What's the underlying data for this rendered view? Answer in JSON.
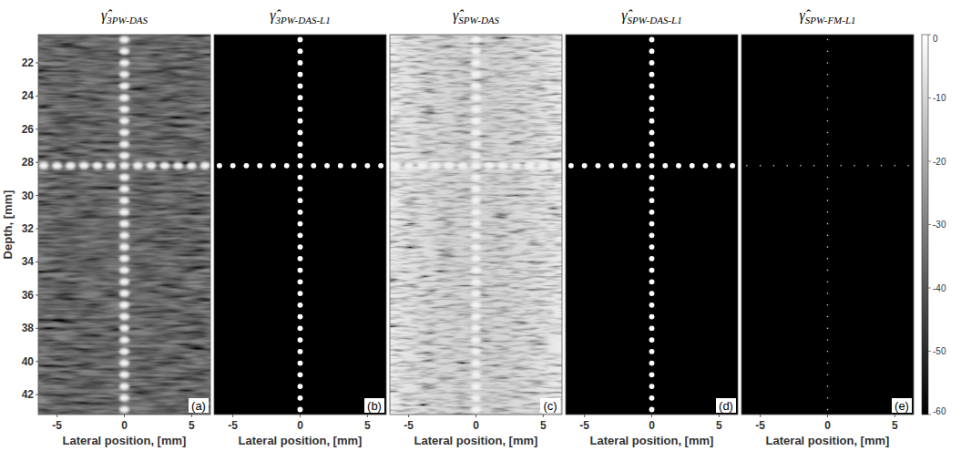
{
  "chart_data": [
    {
      "type": "scatter",
      "title": "γ̂",
      "title_subscript": "3PW-DAS",
      "label": "(a)",
      "xlabel": "Lateral position, [mm]",
      "ylabel": "Depth, [mm]",
      "xlim": [
        -6.4,
        6.4
      ],
      "ylim": [
        20.3,
        43.2
      ],
      "xticks": [
        -5,
        0,
        5
      ],
      "yticks": [
        22,
        24,
        26,
        28,
        30,
        32,
        34,
        36,
        38,
        40,
        42
      ],
      "marker": "blurred",
      "x": [
        0,
        0,
        0,
        0,
        0,
        0,
        0,
        0,
        0,
        0,
        0,
        0,
        0,
        0,
        0,
        0,
        0,
        0,
        0,
        0,
        0,
        0,
        0,
        0,
        0,
        0,
        0,
        0,
        0,
        0,
        0,
        0,
        0,
        -6,
        -5,
        -4,
        -3,
        -2,
        -1,
        1,
        2,
        3,
        4,
        5,
        6
      ],
      "values": [
        20.6,
        21.3,
        22.0,
        22.7,
        23.4,
        24.1,
        24.8,
        25.5,
        26.2,
        26.9,
        27.6,
        28.2,
        28.9,
        29.6,
        30.3,
        31.0,
        31.7,
        32.4,
        33.1,
        33.8,
        34.5,
        35.2,
        35.9,
        36.6,
        37.3,
        38.0,
        38.7,
        39.4,
        40.1,
        40.8,
        41.5,
        42.2,
        42.9,
        28.2,
        28.2,
        28.2,
        28.2,
        28.2,
        28.2,
        28.2,
        28.2,
        28.2,
        28.2,
        28.2,
        28.2
      ]
    },
    {
      "type": "scatter",
      "title": "γ̂",
      "title_subscript": "3PW-DAS-L1",
      "label": "(b)",
      "xlabel": "Lateral position, [mm]",
      "xlim": [
        -6.4,
        6.4
      ],
      "ylim": [
        20.3,
        43.2
      ],
      "xticks": [
        -5,
        0,
        5
      ],
      "tick_labels": "x",
      "marker": "ellipse",
      "x": [
        0,
        0,
        0,
        0,
        0,
        0,
        0,
        0,
        0,
        0,
        0,
        0,
        0,
        0,
        0,
        0,
        0,
        0,
        0,
        0,
        0,
        0,
        0,
        0,
        0,
        0,
        0,
        0,
        0,
        0,
        0,
        0,
        0,
        -6,
        -5,
        -4,
        -3,
        -2,
        -1,
        1,
        2,
        3,
        4,
        5,
        6
      ],
      "values": [
        20.6,
        21.3,
        22.0,
        22.7,
        23.4,
        24.1,
        24.8,
        25.5,
        26.2,
        26.9,
        27.6,
        28.2,
        28.9,
        29.6,
        30.3,
        31.0,
        31.7,
        32.4,
        33.1,
        33.8,
        34.5,
        35.2,
        35.9,
        36.6,
        37.3,
        38.0,
        38.7,
        39.4,
        40.1,
        40.8,
        41.5,
        42.2,
        42.9,
        28.2,
        28.2,
        28.2,
        28.2,
        28.2,
        28.2,
        28.2,
        28.2,
        28.2,
        28.2,
        28.2,
        28.2
      ]
    },
    {
      "type": "scatter",
      "title": "γ̂",
      "title_subscript": "SPW-DAS",
      "label": "(c)",
      "xlabel": "Lateral position, [mm]",
      "xlim": [
        -6.4,
        6.4
      ],
      "ylim": [
        20.3,
        43.2
      ],
      "xticks": [
        -5,
        0,
        5
      ],
      "tick_labels": "x",
      "marker": "speckle",
      "x": [
        0,
        0,
        0,
        0,
        0,
        0,
        0,
        0,
        0,
        0,
        0,
        0,
        0,
        0,
        0,
        0,
        0,
        0,
        0,
        0,
        0,
        0,
        0,
        0,
        0,
        0,
        0,
        0,
        0,
        0,
        0,
        0,
        0,
        -6,
        -5,
        -4,
        -3,
        -2,
        -1,
        1,
        2,
        3,
        4,
        5,
        6
      ],
      "values": [
        20.6,
        21.3,
        22.0,
        22.7,
        23.4,
        24.1,
        24.8,
        25.5,
        26.2,
        26.9,
        27.6,
        28.2,
        28.9,
        29.6,
        30.3,
        31.0,
        31.7,
        32.4,
        33.1,
        33.8,
        34.5,
        35.2,
        35.9,
        36.6,
        37.3,
        38.0,
        38.7,
        39.4,
        40.1,
        40.8,
        41.5,
        42.2,
        42.9,
        28.2,
        28.2,
        28.2,
        28.2,
        28.2,
        28.2,
        28.2,
        28.2,
        28.2,
        28.2,
        28.2,
        28.2
      ]
    },
    {
      "type": "scatter",
      "title": "γ̂",
      "title_subscript": "SPW-DAS-L1",
      "label": "(d)",
      "xlabel": "Lateral position, [mm]",
      "xlim": [
        -6.4,
        6.4
      ],
      "ylim": [
        20.3,
        43.2
      ],
      "xticks": [
        -5,
        0,
        5
      ],
      "tick_labels": "x",
      "marker": "ellipse",
      "x": [
        0,
        0,
        0,
        0,
        0,
        0,
        0,
        0,
        0,
        0,
        0,
        0,
        0,
        0,
        0,
        0,
        0,
        0,
        0,
        0,
        0,
        0,
        0,
        0,
        0,
        0,
        0,
        0,
        0,
        0,
        0,
        0,
        0,
        -6,
        -5,
        -4,
        -3,
        -2,
        -1,
        1,
        2,
        3,
        4,
        5,
        6
      ],
      "values": [
        20.6,
        21.3,
        22.0,
        22.7,
        23.4,
        24.1,
        24.8,
        25.5,
        26.2,
        26.9,
        27.6,
        28.2,
        28.9,
        29.6,
        30.3,
        31.0,
        31.7,
        32.4,
        33.1,
        33.8,
        34.5,
        35.2,
        35.9,
        36.6,
        37.3,
        38.0,
        38.7,
        39.4,
        40.1,
        40.8,
        41.5,
        42.2,
        42.9,
        28.2,
        28.2,
        28.2,
        28.2,
        28.2,
        28.2,
        28.2,
        28.2,
        28.2,
        28.2,
        28.2,
        28.2
      ]
    },
    {
      "type": "scatter",
      "title": "γ̂",
      "title_subscript": "SPW-FM-L1",
      "label": "(e)",
      "xlabel": "Lateral position, [mm]",
      "xlim": [
        -6.4,
        6.4
      ],
      "ylim": [
        20.3,
        43.2
      ],
      "xticks": [
        -5,
        0,
        5
      ],
      "tick_labels": "x",
      "marker": "dot",
      "x": [
        0,
        0,
        0,
        0,
        0,
        0,
        0,
        0,
        0,
        0,
        0,
        0,
        0,
        0,
        0,
        0,
        0,
        0,
        0,
        0,
        0,
        0,
        0,
        0,
        0,
        0,
        0,
        0,
        0,
        0,
        0,
        0,
        0,
        -6,
        -5,
        -4,
        -3,
        -2,
        -1,
        1,
        2,
        3,
        4,
        5,
        6
      ],
      "values": [
        20.6,
        21.3,
        22.0,
        22.7,
        23.4,
        24.1,
        24.8,
        25.5,
        26.2,
        26.9,
        27.6,
        28.2,
        28.9,
        29.6,
        30.3,
        31.0,
        31.7,
        32.4,
        33.1,
        33.8,
        34.5,
        35.2,
        35.9,
        36.6,
        37.3,
        38.0,
        38.7,
        39.4,
        40.1,
        40.8,
        41.5,
        42.2,
        42.9,
        28.2,
        28.2,
        28.2,
        28.2,
        28.2,
        28.2,
        28.2,
        28.2,
        28.2,
        28.2,
        28.2,
        28.2
      ],
      "zlim": [
        -60,
        0
      ],
      "zticks": [
        0,
        -10,
        -20,
        -30,
        -40,
        -50,
        -60
      ]
    }
  ]
}
